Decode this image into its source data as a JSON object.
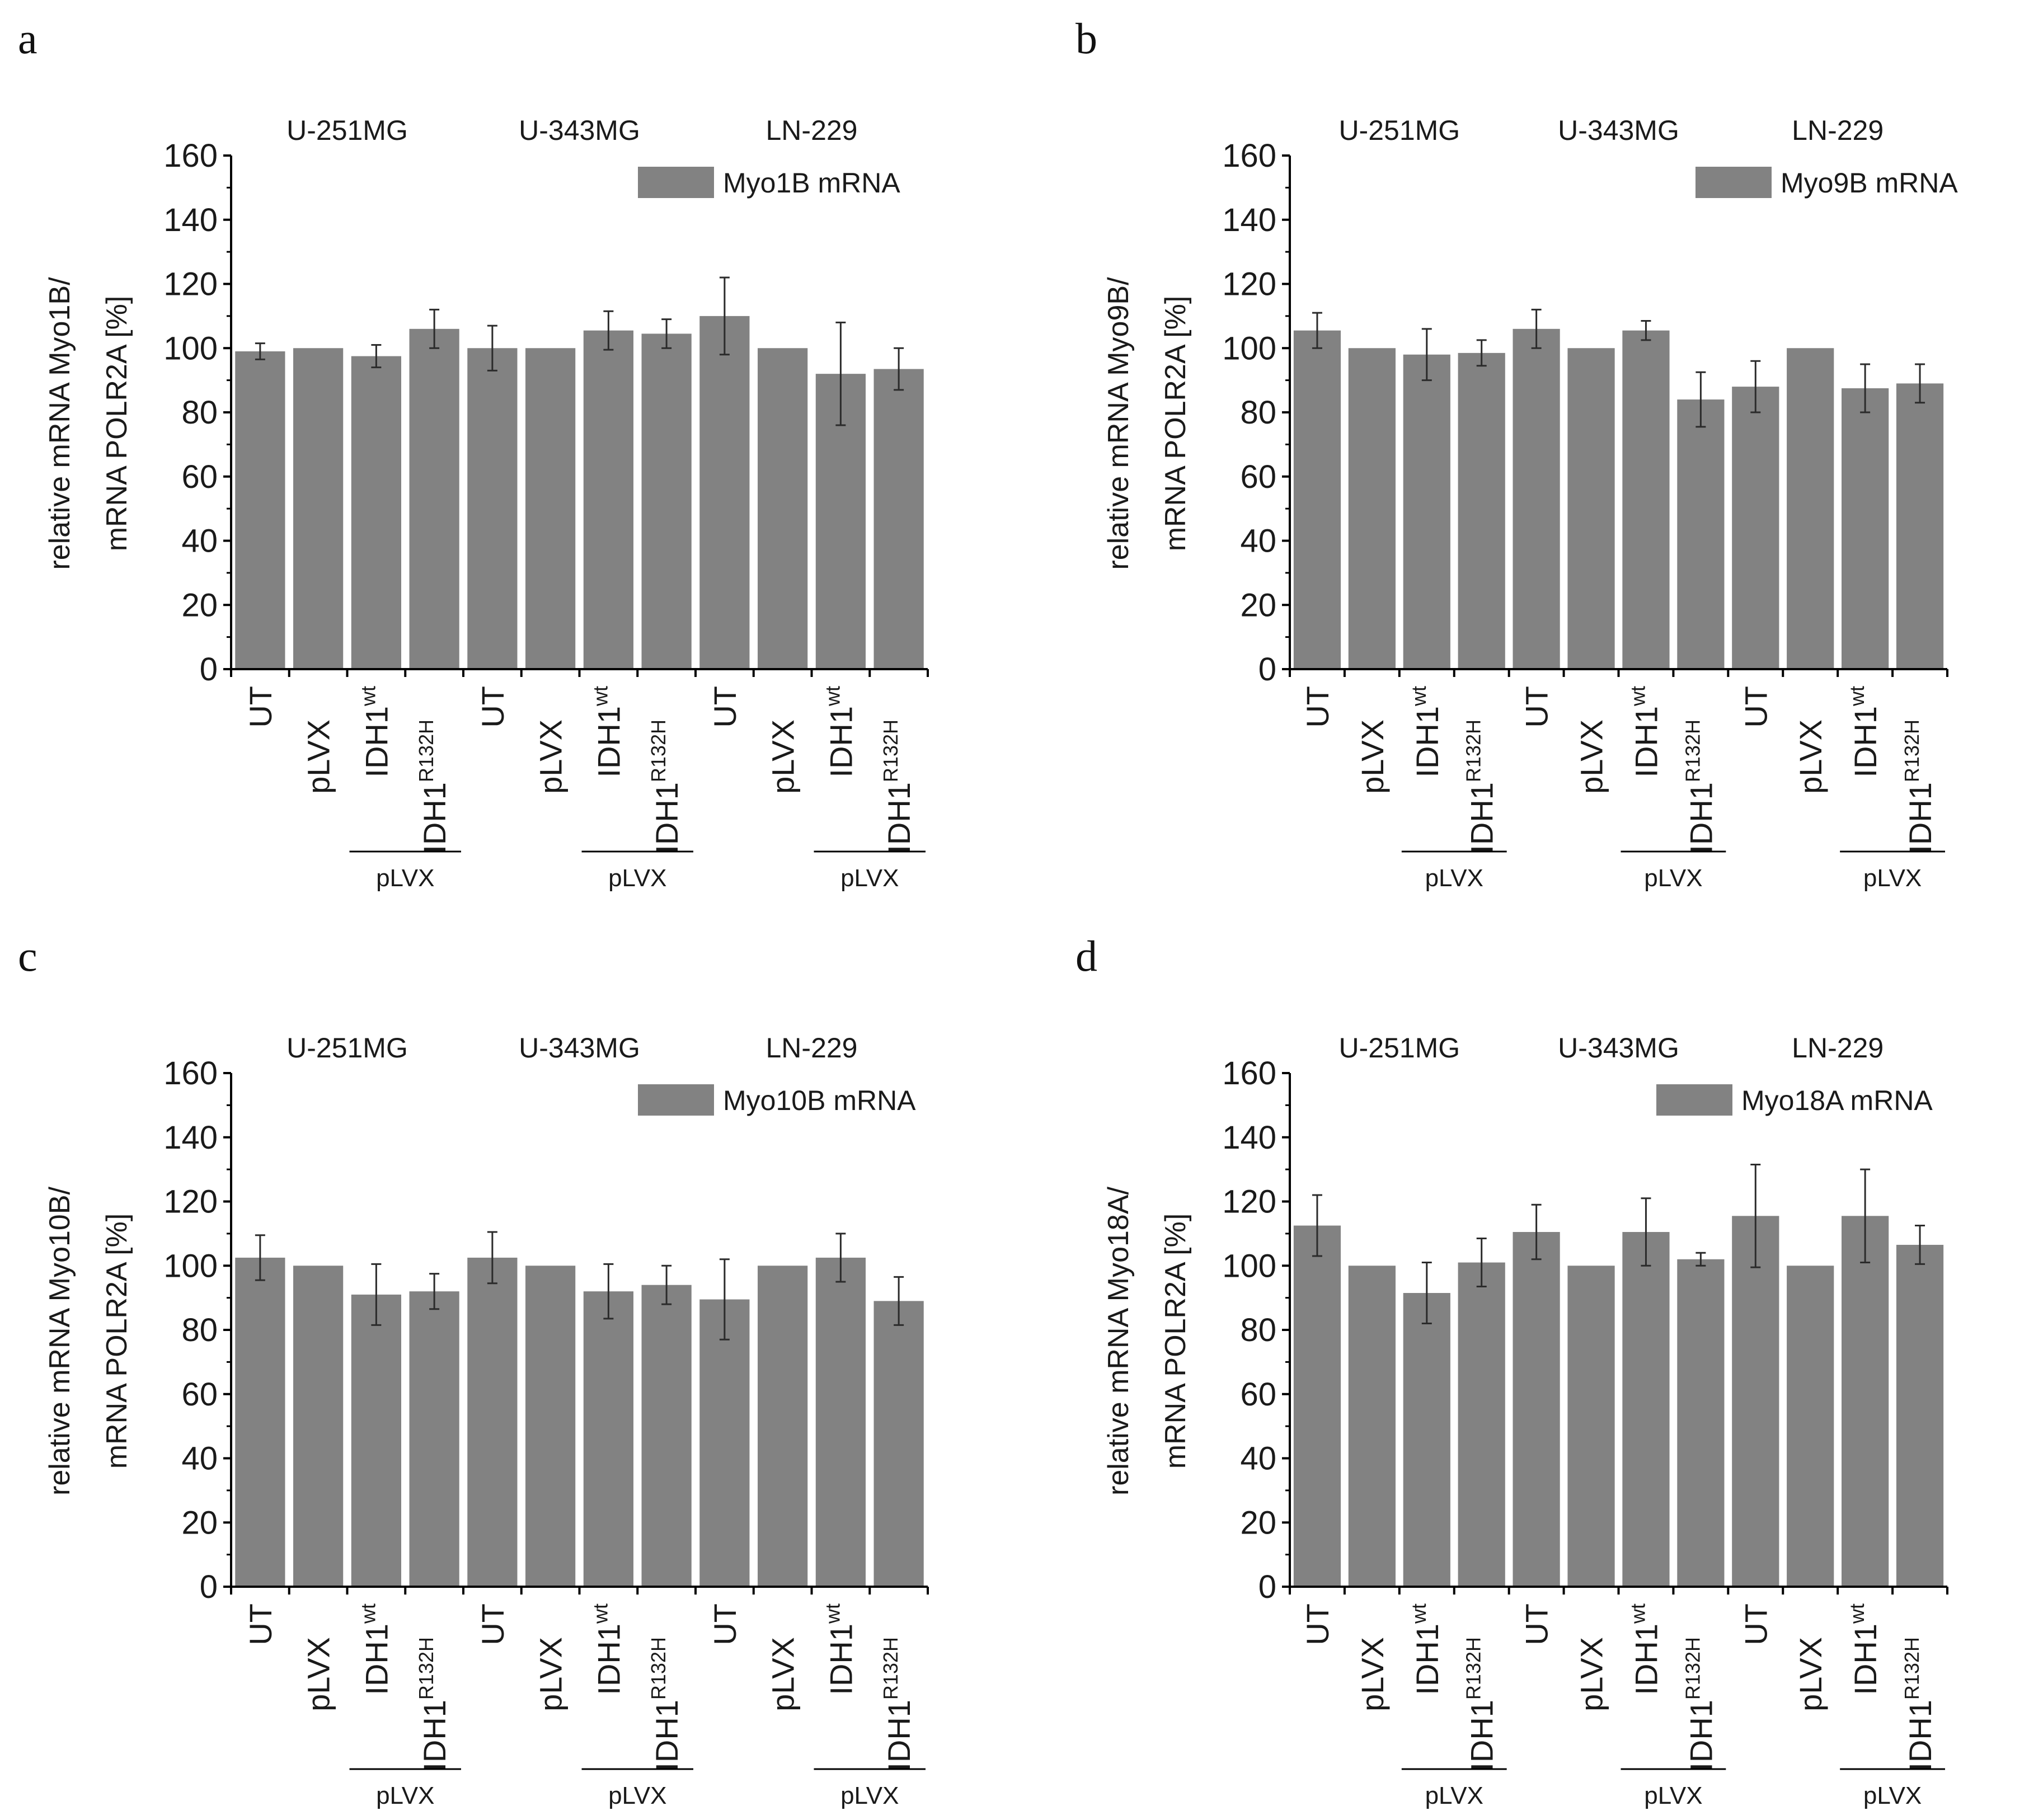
{
  "figure": {
    "group_bracket_label": "pLVX"
  },
  "chart_data": [
    {
      "panel": "a",
      "type": "bar",
      "legend": "Myo1B mRNA",
      "ylabel_line1": "relative mRNA Myo1B/",
      "ylabel_line2": "mRNA POLR2A [%]",
      "ylim": [
        0,
        160
      ],
      "yticks": [
        0,
        20,
        40,
        60,
        80,
        100,
        120,
        140,
        160
      ],
      "cell_lines": [
        "U-251MG",
        "U-343MG",
        "LN-229"
      ],
      "categories": [
        "UT",
        "pLVX",
        "IDH1wt",
        "IDH1R132H",
        "UT",
        "pLVX",
        "IDH1wt",
        "IDH1R132H",
        "UT",
        "pLVX",
        "IDH1wt",
        "IDH1R132H"
      ],
      "values": [
        99,
        100,
        97.5,
        106,
        100,
        100,
        105.5,
        104.5,
        110,
        100,
        92,
        93.5
      ],
      "errors": [
        2.5,
        0,
        3.5,
        6,
        7,
        0,
        6,
        4.5,
        12,
        0,
        16,
        6.5
      ],
      "color": "#828282"
    },
    {
      "panel": "b",
      "type": "bar",
      "legend": "Myo9B mRNA",
      "ylabel_line1": "relative mRNA Myo9B/",
      "ylabel_line2": "mRNA POLR2A [%]",
      "ylim": [
        0,
        160
      ],
      "yticks": [
        0,
        20,
        40,
        60,
        80,
        100,
        120,
        140,
        160
      ],
      "cell_lines": [
        "U-251MG",
        "U-343MG",
        "LN-229"
      ],
      "categories": [
        "UT",
        "pLVX",
        "IDH1wt",
        "IDH1R132H",
        "UT",
        "pLVX",
        "IDH1wt",
        "IDH1R132H",
        "UT",
        "pLVX",
        "IDH1wt",
        "IDH1R132H"
      ],
      "values": [
        105.5,
        100,
        98,
        98.5,
        106,
        100,
        105.5,
        84,
        88,
        100,
        87.5,
        89
      ],
      "errors": [
        5.5,
        0,
        8,
        4,
        6,
        0,
        3,
        8.5,
        8,
        0,
        7.5,
        6
      ],
      "color": "#828282"
    },
    {
      "panel": "c",
      "type": "bar",
      "legend": "Myo10B mRNA",
      "ylabel_line1": "relative mRNA Myo10B/",
      "ylabel_line2": "mRNA POLR2A [%]",
      "ylim": [
        0,
        160
      ],
      "yticks": [
        0,
        20,
        40,
        60,
        80,
        100,
        120,
        140,
        160
      ],
      "cell_lines": [
        "U-251MG",
        "U-343MG",
        "LN-229"
      ],
      "categories": [
        "UT",
        "pLVX",
        "IDH1wt",
        "IDH1R132H",
        "UT",
        "pLVX",
        "IDH1wt",
        "IDH1R132H",
        "UT",
        "pLVX",
        "IDH1wt",
        "IDH1R132H"
      ],
      "values": [
        102.5,
        100,
        91,
        92,
        102.5,
        100,
        92,
        94,
        89.5,
        100,
        102.5,
        89
      ],
      "errors": [
        7,
        0,
        9.5,
        5.5,
        8,
        0,
        8.5,
        6,
        12.5,
        0,
        7.5,
        7.5
      ],
      "color": "#828282"
    },
    {
      "panel": "d",
      "type": "bar",
      "legend": "Myo18A mRNA",
      "ylabel_line1": "relative mRNA Myo18A/",
      "ylabel_line2": "mRNA POLR2A [%]",
      "ylim": [
        0,
        160
      ],
      "yticks": [
        0,
        20,
        40,
        60,
        80,
        100,
        120,
        140,
        160
      ],
      "cell_lines": [
        "U-251MG",
        "U-343MG",
        "LN-229"
      ],
      "categories": [
        "UT",
        "pLVX",
        "IDH1wt",
        "IDH1R132H",
        "UT",
        "pLVX",
        "IDH1wt",
        "IDH1R132H",
        "UT",
        "pLVX",
        "IDH1wt",
        "IDH1R132H"
      ],
      "values": [
        112.5,
        100,
        91.5,
        101,
        110.5,
        100,
        110.5,
        102,
        115.5,
        100,
        115.5,
        106.5
      ],
      "errors": [
        9.5,
        0,
        9.5,
        7.5,
        8.5,
        0,
        10.5,
        2,
        16,
        0,
        14.5,
        6
      ],
      "color": "#828282"
    }
  ]
}
